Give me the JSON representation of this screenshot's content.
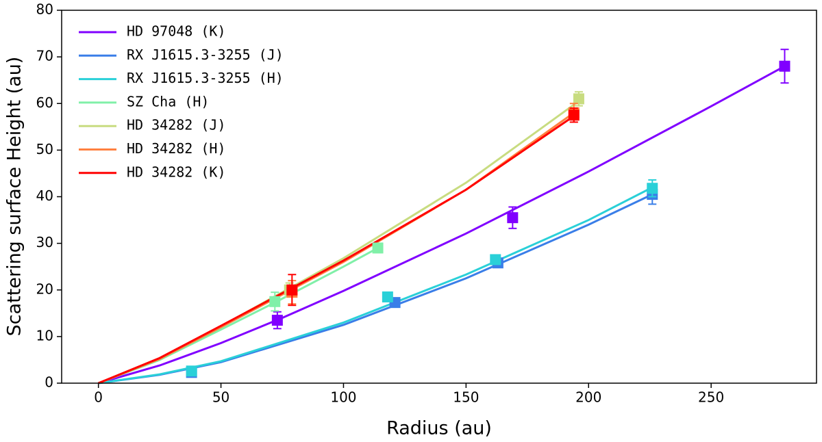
{
  "chart_data": {
    "type": "scatter_fit",
    "xlabel": "Radius (au)",
    "ylabel": "Scattering surface Height (au)",
    "xlim": [
      -15,
      293
    ],
    "ylim": [
      0,
      80
    ],
    "xticks": [
      0,
      50,
      100,
      150,
      200,
      250
    ],
    "yticks": [
      0,
      10,
      20,
      30,
      40,
      50,
      60,
      70,
      80
    ],
    "legend": "upper left",
    "series": [
      {
        "name": "HD 97048 (K)",
        "color": "#8000ff",
        "x": [
          73,
          169,
          280
        ],
        "values": [
          13.5,
          35.5,
          68
        ],
        "errors": [
          1.8,
          2.3,
          3.6
        ],
        "fit_x": [
          0,
          25,
          50,
          75,
          100,
          150,
          200,
          250,
          280
        ],
        "fit_values": [
          0,
          3.8,
          8.6,
          14,
          19.8,
          32.1,
          45.4,
          59.4,
          68
        ]
      },
      {
        "name": "RX J1615.3-3255 (J)",
        "color": "#3a7ee8",
        "x": [
          38,
          121,
          163,
          226
        ],
        "values": [
          2.3,
          17.3,
          25.8,
          40.5
        ],
        "errors": [
          0.5,
          0.8,
          0.9,
          2.1
        ],
        "fit_x": [
          0,
          25,
          50,
          100,
          150,
          200,
          226
        ],
        "fit_values": [
          0,
          1.8,
          4.5,
          12.5,
          22.5,
          34,
          40.5
        ]
      },
      {
        "name": "RX J1615.3-3255 (H)",
        "color": "#2ad0d8",
        "x": [
          38,
          118,
          162,
          226
        ],
        "values": [
          2.6,
          18.5,
          26.5,
          41.8
        ],
        "errors": [
          0.5,
          0.8,
          0.9,
          1.8
        ],
        "fit_x": [
          0,
          25,
          50,
          100,
          150,
          200,
          226
        ],
        "fit_values": [
          0,
          1.9,
          4.7,
          13,
          23.3,
          35,
          42
        ]
      },
      {
        "name": "SZ Cha (H)",
        "color": "#80f0a8",
        "x": [
          72,
          114
        ],
        "values": [
          17.5,
          29
        ],
        "errors": [
          2,
          1
        ],
        "fit_x": [
          0,
          25,
          50,
          72,
          100,
          114
        ],
        "fit_values": [
          0,
          5,
          11.5,
          17.3,
          25,
          29
        ]
      },
      {
        "name": "HD 34282 (J)",
        "color": "#c8dc80",
        "x": [
          78,
          196
        ],
        "values": [
          20,
          61
        ],
        "errors": [
          1.5,
          1.5
        ],
        "fit_x": [
          0,
          25,
          50,
          100,
          150,
          196
        ],
        "fit_values": [
          0,
          5.3,
          12.2,
          26.8,
          43,
          60.5
        ]
      },
      {
        "name": "HD 34282 (H)",
        "color": "#ff8040",
        "x": [
          79,
          194
        ],
        "values": [
          19.5,
          58
        ],
        "errors": [
          2.5,
          2
        ],
        "fit_x": [
          0,
          25,
          50,
          100,
          150,
          194
        ],
        "fit_values": [
          0,
          5.2,
          12,
          26,
          41.5,
          58
        ]
      },
      {
        "name": "HD 34282 (K)",
        "color": "#ff0000",
        "x": [
          79,
          194
        ],
        "values": [
          20,
          57.5
        ],
        "errors": [
          3.3,
          1.5
        ],
        "fit_x": [
          0,
          25,
          50,
          100,
          150,
          194
        ],
        "fit_values": [
          0,
          5.4,
          12.3,
          26.3,
          41.5,
          57.3
        ]
      }
    ]
  }
}
